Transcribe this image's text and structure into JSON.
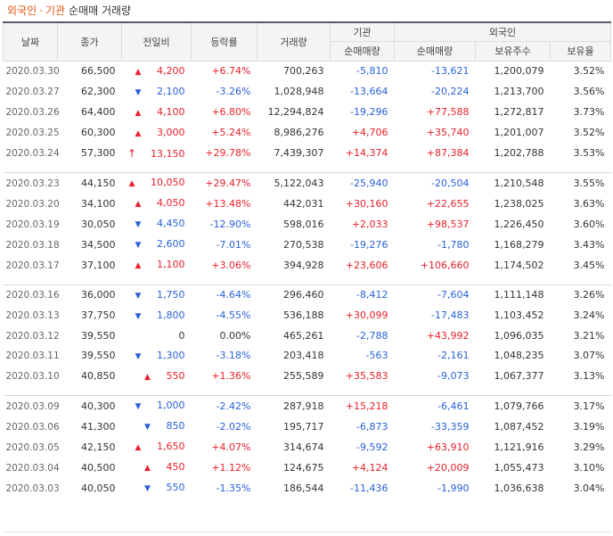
{
  "header": {
    "tab_foreign": "외국인",
    "sep": "·",
    "tab_institution": "기관",
    "subtitle": "순매매 거래량"
  },
  "columns": {
    "date": "날짜",
    "close": "종가",
    "change": "전일비",
    "rate": "등락률",
    "volume": "거래량",
    "institution": "기관",
    "foreign": "외국인",
    "inst_net": "순매매량",
    "for_net": "순매매량",
    "for_hold": "보유주수",
    "for_ratio": "보유율"
  },
  "colors": {
    "up": "#e8202a",
    "down": "#2861d8",
    "accent": "#e8540a"
  },
  "rows": [
    {
      "date": "2020.03.30",
      "close": "66,500",
      "dir": "up",
      "change": "4,200",
      "rate": "+6.74%",
      "volume": "700,263",
      "inst": "-5,810",
      "foreign": "-13,621",
      "hold": "1,200,079",
      "ratio": "3.52%"
    },
    {
      "date": "2020.03.27",
      "close": "62,300",
      "dir": "down",
      "change": "2,100",
      "rate": "-3.26%",
      "volume": "1,028,948",
      "inst": "-13,664",
      "foreign": "-20,224",
      "hold": "1,213,700",
      "ratio": "3.56%"
    },
    {
      "date": "2020.03.26",
      "close": "64,400",
      "dir": "up",
      "change": "4,100",
      "rate": "+6.80%",
      "volume": "12,294,824",
      "inst": "-19,296",
      "foreign": "+77,588",
      "hold": "1,272,817",
      "ratio": "3.73%"
    },
    {
      "date": "2020.03.25",
      "close": "60,300",
      "dir": "up",
      "change": "3,000",
      "rate": "+5.24%",
      "volume": "8,986,276",
      "inst": "+4,706",
      "foreign": "+35,740",
      "hold": "1,201,007",
      "ratio": "3.52%"
    },
    {
      "date": "2020.03.24",
      "close": "57,300",
      "dir": "limit",
      "change": "13,150",
      "rate": "+29.78%",
      "volume": "7,439,307",
      "inst": "+14,374",
      "foreign": "+87,384",
      "hold": "1,202,788",
      "ratio": "3.53%"
    },
    {
      "date": "2020.03.23",
      "close": "44,150",
      "dir": "up",
      "change": "10,050",
      "rate": "+29.47%",
      "volume": "5,122,043",
      "inst": "-25,940",
      "foreign": "-20,504",
      "hold": "1,210,548",
      "ratio": "3.55%"
    },
    {
      "date": "2020.03.20",
      "close": "34,100",
      "dir": "up",
      "change": "4,050",
      "rate": "+13.48%",
      "volume": "442,031",
      "inst": "+30,160",
      "foreign": "+22,655",
      "hold": "1,238,025",
      "ratio": "3.63%"
    },
    {
      "date": "2020.03.19",
      "close": "30,050",
      "dir": "down",
      "change": "4,450",
      "rate": "-12.90%",
      "volume": "598,016",
      "inst": "+2,033",
      "foreign": "+98,537",
      "hold": "1,226,450",
      "ratio": "3.60%"
    },
    {
      "date": "2020.03.18",
      "close": "34,500",
      "dir": "down",
      "change": "2,600",
      "rate": "-7.01%",
      "volume": "270,538",
      "inst": "-19,276",
      "foreign": "-1,780",
      "hold": "1,168,279",
      "ratio": "3.43%"
    },
    {
      "date": "2020.03.17",
      "close": "37,100",
      "dir": "up",
      "change": "1,100",
      "rate": "+3.06%",
      "volume": "394,928",
      "inst": "+23,606",
      "foreign": "+106,660",
      "hold": "1,174,502",
      "ratio": "3.45%"
    },
    {
      "date": "2020.03.16",
      "close": "36,000",
      "dir": "down",
      "change": "1,750",
      "rate": "-4.64%",
      "volume": "296,460",
      "inst": "-8,412",
      "foreign": "-7,604",
      "hold": "1,111,148",
      "ratio": "3.26%"
    },
    {
      "date": "2020.03.13",
      "close": "37,750",
      "dir": "down",
      "change": "1,800",
      "rate": "-4.55%",
      "volume": "536,188",
      "inst": "+30,099",
      "foreign": "-17,483",
      "hold": "1,103,452",
      "ratio": "3.24%"
    },
    {
      "date": "2020.03.12",
      "close": "39,550",
      "dir": "none",
      "change": "0",
      "rate": "0.00%",
      "volume": "465,261",
      "inst": "-2,788",
      "foreign": "+43,992",
      "hold": "1,096,035",
      "ratio": "3.21%"
    },
    {
      "date": "2020.03.11",
      "close": "39,550",
      "dir": "down",
      "change": "1,300",
      "rate": "-3.18%",
      "volume": "203,418",
      "inst": "-563",
      "foreign": "-2,161",
      "hold": "1,048,235",
      "ratio": "3.07%"
    },
    {
      "date": "2020.03.10",
      "close": "40,850",
      "dir": "up",
      "change": "550",
      "rate": "+1.36%",
      "volume": "255,589",
      "inst": "+35,583",
      "foreign": "-9,073",
      "hold": "1,067,377",
      "ratio": "3.13%"
    },
    {
      "date": "2020.03.09",
      "close": "40,300",
      "dir": "down",
      "change": "1,000",
      "rate": "-2.42%",
      "volume": "287,918",
      "inst": "+15,218",
      "foreign": "-6,461",
      "hold": "1,079,766",
      "ratio": "3.17%"
    },
    {
      "date": "2020.03.06",
      "close": "41,300",
      "dir": "down",
      "change": "850",
      "rate": "-2.02%",
      "volume": "195,717",
      "inst": "-6,873",
      "foreign": "-33,359",
      "hold": "1,087,452",
      "ratio": "3.19%"
    },
    {
      "date": "2020.03.05",
      "close": "42,150",
      "dir": "up",
      "change": "1,650",
      "rate": "+4.07%",
      "volume": "314,674",
      "inst": "-9,592",
      "foreign": "+63,910",
      "hold": "1,121,916",
      "ratio": "3.29%"
    },
    {
      "date": "2020.03.04",
      "close": "40,500",
      "dir": "up",
      "change": "450",
      "rate": "+1.12%",
      "volume": "124,675",
      "inst": "+4,124",
      "foreign": "+20,009",
      "hold": "1,055,473",
      "ratio": "3.10%"
    },
    {
      "date": "2020.03.03",
      "close": "40,050",
      "dir": "down",
      "change": "550",
      "rate": "-1.35%",
      "volume": "186,544",
      "inst": "-11,436",
      "foreign": "-1,990",
      "hold": "1,036,638",
      "ratio": "3.04%"
    }
  ]
}
